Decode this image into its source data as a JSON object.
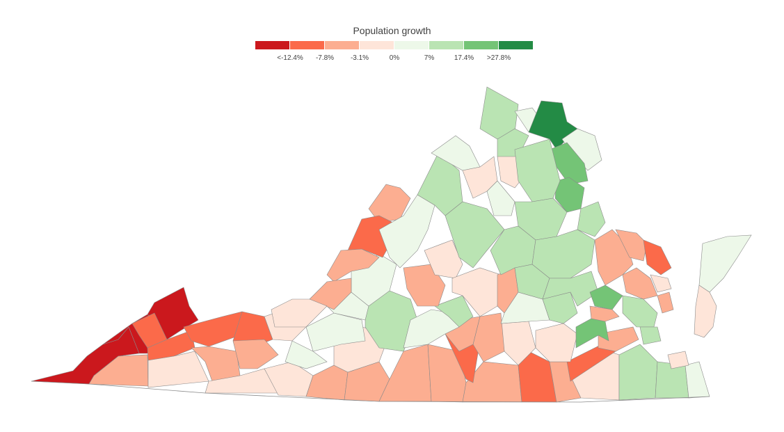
{
  "legend": {
    "title": "Population growth",
    "colors": [
      "#cb181d",
      "#fb6a4a",
      "#fcae91",
      "#fee5d9",
      "#edf8e9",
      "#bae4b3",
      "#74c476",
      "#238b45"
    ],
    "tick_labels": [
      "<-12.4%",
      "-7.8%",
      "-3.1%",
      "0%",
      "7%",
      "17.4%",
      ">27.8%"
    ]
  },
  "map": {
    "region": "Virginia counties",
    "color_key": [
      "very-low",
      "low",
      "below",
      "flat",
      "slight",
      "moderate",
      "high",
      "very-high"
    ]
  }
}
